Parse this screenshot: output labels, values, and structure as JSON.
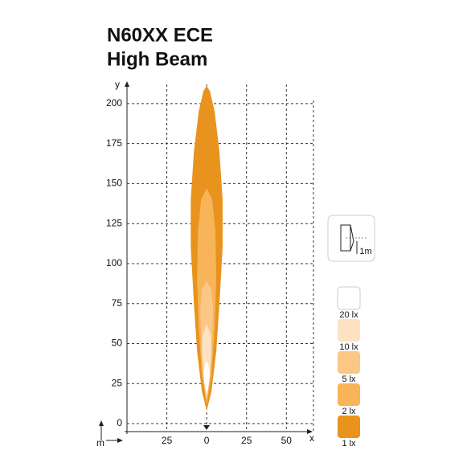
{
  "chart_data": {
    "type": "isolux",
    "title_lines": [
      "N60XX ECE",
      "High Beam"
    ],
    "x_label": "x",
    "y_label": "y",
    "unit_label": "m",
    "icon_label": "1m",
    "xlim": [
      -50,
      67
    ],
    "ylim": [
      -5,
      212
    ],
    "xticks": [
      {
        "value": -25,
        "label": "25"
      },
      0,
      25,
      50
    ],
    "yticks": [
      0,
      25,
      50,
      75,
      100,
      125,
      150,
      175,
      200
    ],
    "grid": true,
    "series": [
      {
        "name": "20 lx",
        "color": "#ffffff",
        "x": [
          0,
          1.5,
          2,
          1,
          0,
          -1,
          -2,
          -1.5
        ],
        "values": [
          18,
          25,
          32,
          37,
          39,
          37,
          32,
          25
        ]
      },
      {
        "name": "10 lx",
        "color": "#fde3c4",
        "x": [
          0,
          2,
          3,
          2.5,
          0,
          -2.5,
          -3,
          -2
        ],
        "values": [
          16,
          30,
          45,
          56,
          62,
          56,
          45,
          30
        ]
      },
      {
        "name": "5 lx",
        "color": "#fbc787",
        "x": [
          0,
          2,
          3.5,
          4,
          3,
          0,
          -3,
          -4,
          -3.5,
          -2
        ],
        "values": [
          14,
          30,
          55,
          72,
          84,
          89,
          84,
          72,
          55,
          30
        ]
      },
      {
        "name": "2 lx",
        "color": "#f8b458",
        "x": [
          0,
          3,
          5,
          6,
          5.5,
          3.5,
          0,
          -3.5,
          -5.5,
          -6,
          -5,
          -3
        ],
        "values": [
          12,
          30,
          60,
          90,
          120,
          140,
          147,
          140,
          120,
          90,
          60,
          30
        ]
      },
      {
        "name": "1 lx",
        "color": "#e8931e",
        "x": [
          0,
          3,
          6,
          8,
          10,
          10,
          8,
          5,
          2,
          0,
          -2,
          -5,
          -8,
          -10,
          -10,
          -8,
          -6,
          -3
        ],
        "values": [
          8,
          20,
          45,
          75,
          110,
          140,
          170,
          195,
          208,
          211,
          208,
          195,
          170,
          140,
          110,
          75,
          45,
          20
        ]
      }
    ]
  }
}
